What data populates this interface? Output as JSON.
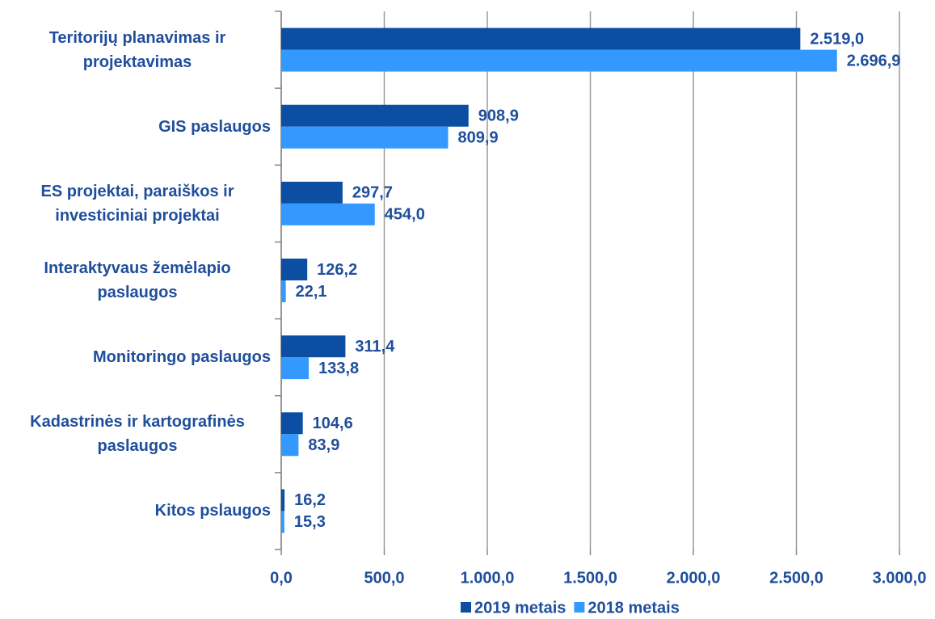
{
  "chart_data": {
    "type": "bar",
    "orientation": "horizontal",
    "categories": [
      "Teritorijų planavimas ir projektavimas",
      "GIS paslaugos",
      "ES projektai, paraiškos ir investiciniai projektai",
      "Interaktyvaus žemėlapio paslaugos",
      "Monitoringo paslaugos",
      "Kadastrinės ir kartografinės paslaugos",
      "Kitos pslaugos"
    ],
    "series": [
      {
        "name": "2019 metais",
        "color": "#0b4ea2",
        "values": [
          2519.0,
          908.9,
          297.7,
          126.2,
          311.4,
          104.6,
          16.2
        ],
        "value_labels": [
          "2.519,0",
          "908,9",
          "297,7",
          "126,2",
          "311,4",
          "104,6",
          "16,2"
        ]
      },
      {
        "name": "2018 metais",
        "color": "#3399ff",
        "values": [
          2696.9,
          809.9,
          454.0,
          22.1,
          133.8,
          83.9,
          15.3
        ],
        "value_labels": [
          "2.696,9",
          "809,9",
          "454,0",
          "22,1",
          "133,8",
          "83,9",
          "15,3"
        ]
      }
    ],
    "xlim": [
      0,
      3000
    ],
    "xticks": [
      {
        "value": 0,
        "label": "0,0"
      },
      {
        "value": 500,
        "label": "500,0"
      },
      {
        "value": 1000,
        "label": "1.000,0"
      },
      {
        "value": 1500,
        "label": "1.500,0"
      },
      {
        "value": 2000,
        "label": "2.000,0"
      },
      {
        "value": 2500,
        "label": "2.500,0"
      },
      {
        "value": 3000,
        "label": "3.000,0"
      }
    ],
    "grid": true,
    "legend": "bottom"
  }
}
